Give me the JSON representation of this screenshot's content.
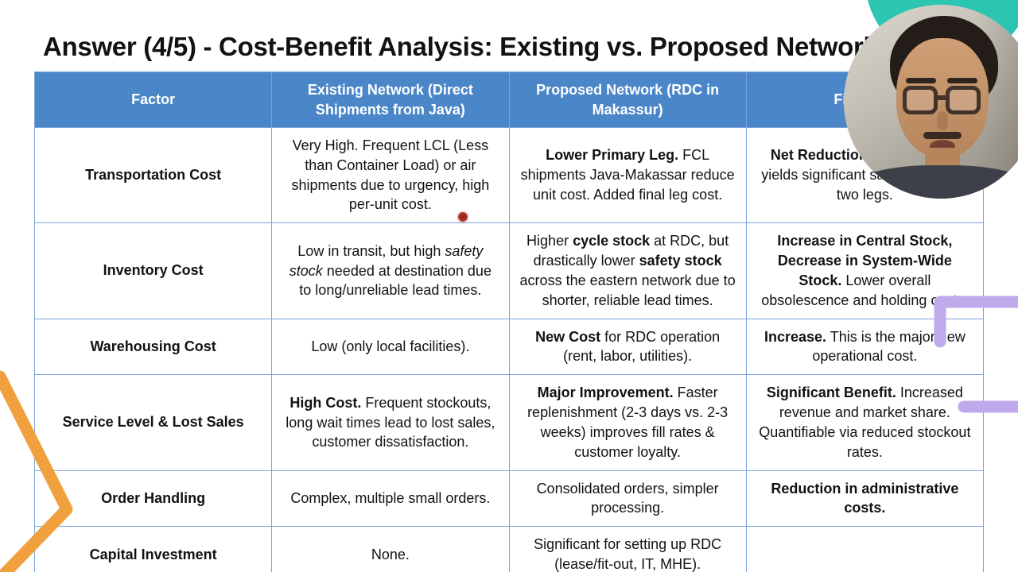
{
  "title": "Answer (4/5) - Cost-Benefit Analysis: Existing vs. Proposed Network",
  "colors": {
    "header-blue": "#4a86c8",
    "border-blue": "#7aa3da",
    "accent-orange": "#f0a13e",
    "accent-purple": "#c0aaec",
    "accent-teal": "#2cc5b2",
    "pointer-red": "#b03228"
  },
  "table": {
    "headers": [
      "Factor",
      "Existing Network (Direct Shipments from Java)",
      "Proposed Network (RDC in Makassur)",
      "Financial"
    ],
    "rows": [
      {
        "factor": "Transportation Cost",
        "existing": [
          {
            "t": "Very High. Frequent LCL (Less than Container Load) or air shipments due to urgency, high per-unit cost."
          }
        ],
        "proposed": [
          {
            "t": "Lower Primary Leg.",
            "b": true
          },
          {
            "t": " FCL shipments Java-Makassar reduce unit cost. Added final leg cost."
          }
        ],
        "financial": [
          {
            "t": "Net Reduction.",
            "b": true
          },
          {
            "t": " consolidation yields significant savings despite two legs."
          }
        ]
      },
      {
        "factor": "Inventory Cost",
        "existing": [
          {
            "t": "Low in transit, but high "
          },
          {
            "t": "safety stock",
            "i": true
          },
          {
            "t": " needed at destination due to long/unreliable lead times."
          }
        ],
        "proposed": [
          {
            "t": "Higher "
          },
          {
            "t": "cycle stock",
            "b": true
          },
          {
            "t": " at RDC, but drastically lower "
          },
          {
            "t": "safety stock",
            "b": true
          },
          {
            "t": " across the eastern network due to shorter, reliable lead times."
          }
        ],
        "financial": [
          {
            "t": "Increase in Central Stock, Decrease in System-Wide Stock.",
            "b": true
          },
          {
            "t": " Lower overall obsolescence and holding costs."
          }
        ]
      },
      {
        "factor": "Warehousing Cost",
        "existing": [
          {
            "t": "Low (only local facilities)."
          }
        ],
        "proposed": [
          {
            "t": "New Cost",
            "b": true
          },
          {
            "t": " for RDC operation (rent, labor, utilities)."
          }
        ],
        "financial": [
          {
            "t": "Increase.",
            "b": true
          },
          {
            "t": " This is the major new operational cost."
          }
        ]
      },
      {
        "factor": "Service Level & Lost Sales",
        "existing": [
          {
            "t": "High Cost.",
            "b": true
          },
          {
            "t": " Frequent stockouts, long wait times lead to lost sales, customer dissatisfaction."
          }
        ],
        "proposed": [
          {
            "t": "Major Improvement.",
            "b": true
          },
          {
            "t": " Faster replenishment (2-3 days vs. 2-3 weeks) improves fill rates & customer loyalty."
          }
        ],
        "financial": [
          {
            "t": "Significant Benefit.",
            "b": true
          },
          {
            "t": " Increased revenue and market share. Quantifiable via reduced stockout rates."
          }
        ]
      },
      {
        "factor": "Order Handling",
        "existing": [
          {
            "t": "Complex, multiple small orders."
          }
        ],
        "proposed": [
          {
            "t": "Consolidated orders, simpler processing."
          }
        ],
        "financial": [
          {
            "t": "Reduction in administrative costs.",
            "b": true
          }
        ]
      },
      {
        "factor": "Capital Investment",
        "existing": [
          {
            "t": "None."
          }
        ],
        "proposed": [
          {
            "t": "Significant for setting up RDC (lease/fit-out, IT, MHE)."
          }
        ],
        "financial": []
      }
    ]
  }
}
